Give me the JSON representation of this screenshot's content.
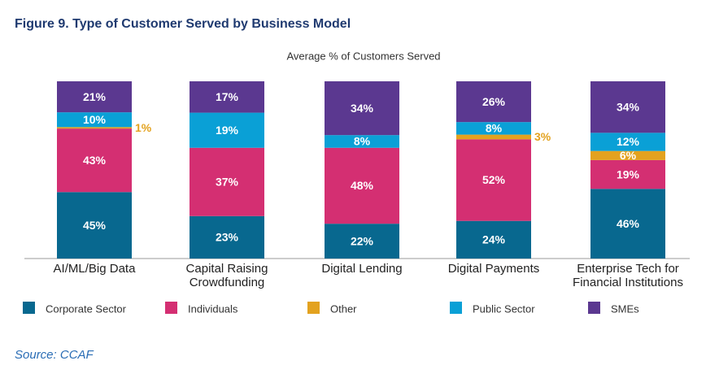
{
  "chart_data": {
    "type": "bar",
    "stacked": "percent",
    "title": "Figure 9. Type of Customer Served by Business Model",
    "subtitle": "Average % of Customers Served",
    "categories": [
      "AI/ML/Big Data",
      "Capital Raising Crowdfunding",
      "Digital Lending",
      "Digital Payments",
      "Enterprise Tech for Financial Institutions"
    ],
    "series": [
      {
        "name": "Corporate Sector",
        "color": "#08688f",
        "values": [
          45,
          23,
          22,
          24,
          46
        ],
        "value_labels": [
          "45%",
          "23%",
          "22%",
          "24%",
          "46%"
        ]
      },
      {
        "name": "Individuals",
        "color": "#d42f72",
        "values": [
          43,
          37,
          48,
          52,
          19
        ],
        "value_labels": [
          "43%",
          "37%",
          "48%",
          "52%",
          "19%"
        ]
      },
      {
        "name": "Other",
        "color": "#e3a21f",
        "values": [
          1,
          null,
          null,
          3,
          6
        ],
        "value_labels": [
          "1%",
          null,
          null,
          "3%",
          "6%"
        ]
      },
      {
        "name": "Public Sector",
        "color": "#0aa0d6",
        "values": [
          10,
          19,
          8,
          8,
          12
        ],
        "value_labels": [
          "10%",
          "19%",
          "8%",
          "8%",
          "12%"
        ]
      },
      {
        "name": "SMEs",
        "color": "#5b3890",
        "values": [
          21,
          17,
          34,
          26,
          34
        ],
        "value_labels": [
          "21%",
          "17%",
          "34%",
          "26%",
          "34%"
        ]
      }
    ]
  },
  "source": "Source: CCAF"
}
